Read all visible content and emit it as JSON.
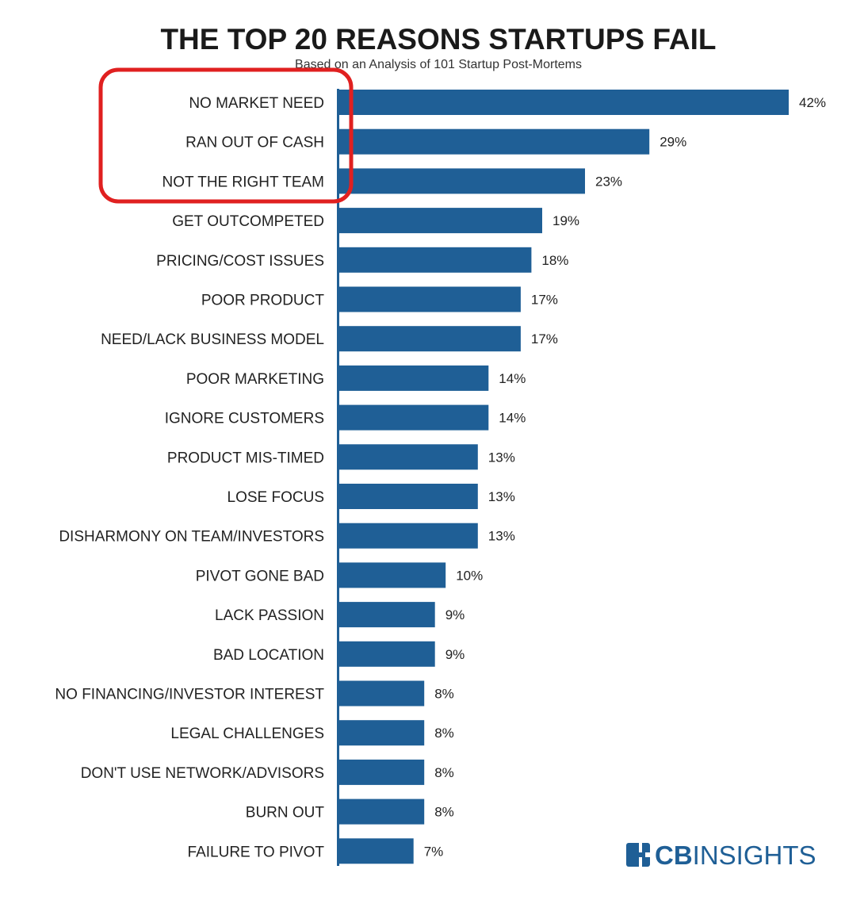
{
  "chart_data": {
    "type": "bar",
    "orientation": "horizontal",
    "title": "THE TOP 20 REASONS STARTUPS FAIL",
    "subtitle": "Based on an Analysis of 101 Startup Post-Mortems",
    "categories": [
      "NO MARKET NEED",
      "RAN OUT OF CASH",
      "NOT THE RIGHT TEAM",
      "GET OUTCOMPETED",
      "PRICING/COST ISSUES",
      "POOR PRODUCT",
      "NEED/LACK BUSINESS MODEL",
      "POOR MARKETING",
      "IGNORE CUSTOMERS",
      "PRODUCT MIS-TIMED",
      "LOSE FOCUS",
      "DISHARMONY ON TEAM/INVESTORS",
      "PIVOT GONE BAD",
      "LACK PASSION",
      "BAD LOCATION",
      "NO FINANCING/INVESTOR INTEREST",
      "LEGAL CHALLENGES",
      "DON'T USE NETWORK/ADVISORS",
      "BURN OUT",
      "FAILURE TO PIVOT"
    ],
    "values": [
      42,
      29,
      23,
      19,
      18,
      17,
      17,
      14,
      14,
      13,
      13,
      13,
      10,
      9,
      9,
      8,
      8,
      8,
      8,
      7
    ],
    "value_labels": [
      "42%",
      "29%",
      "23%",
      "19%",
      "18%",
      "17%",
      "17%",
      "14%",
      "14%",
      "13%",
      "13%",
      "13%",
      "10%",
      "9%",
      "9%",
      "8%",
      "8%",
      "8%",
      "8%",
      "7%"
    ],
    "xlabel": "",
    "ylabel": "",
    "xlim": [
      0,
      42
    ],
    "grid": false,
    "legend": "none",
    "bar_color": "#1f5f96",
    "highlight": {
      "categories": [
        "NO MARKET NEED",
        "RAN OUT OF CASH",
        "NOT THE RIGHT TEAM"
      ],
      "style": "rounded rectangle outline",
      "color": "#e02020"
    }
  },
  "brand": {
    "bold": "CB",
    "rest": "INSIGHTS",
    "icon": "cb-insights-logo-icon",
    "color": "#1f5f96"
  }
}
